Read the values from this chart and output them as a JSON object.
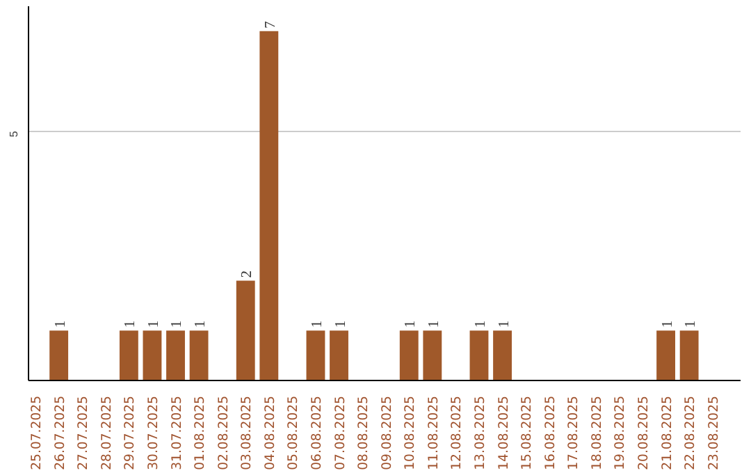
{
  "chart_data": {
    "type": "bar",
    "categories": [
      "25.07.2025",
      "26.07.2025",
      "27.07.2025",
      "28.07.2025",
      "29.07.2025",
      "30.07.2025",
      "31.07.2025",
      "01.08.2025",
      "02.08.2025",
      "03.08.2025",
      "04.08.2025",
      "05.08.2025",
      "06.08.2025",
      "07.08.2025",
      "08.08.2025",
      "09.08.2025",
      "10.08.2025",
      "11.08.2025",
      "12.08.2025",
      "13.08.2025",
      "14.08.2025",
      "15.08.2025",
      "16.08.2025",
      "17.08.2025",
      "18.08.2025",
      "19.08.2025",
      "20.08.2025",
      "21.08.2025",
      "22.08.2025",
      "23.08.2025"
    ],
    "values": [
      0,
      1,
      0,
      0,
      1,
      1,
      1,
      1,
      0,
      2,
      7,
      0,
      1,
      1,
      0,
      0,
      1,
      1,
      0,
      1,
      1,
      0,
      0,
      0,
      0,
      0,
      0,
      1,
      1,
      0
    ],
    "value_labels": [
      null,
      "1",
      null,
      null,
      "1",
      "1",
      "1",
      "1",
      null,
      "2",
      "7",
      null,
      "1",
      "1",
      null,
      null,
      "1",
      "1",
      null,
      "1",
      "1",
      null,
      null,
      null,
      null,
      null,
      null,
      "1",
      "1",
      null
    ],
    "color": "#a0592a",
    "ylim": [
      0,
      7.5
    ],
    "yticks": [
      5
    ],
    "grid": "y"
  }
}
